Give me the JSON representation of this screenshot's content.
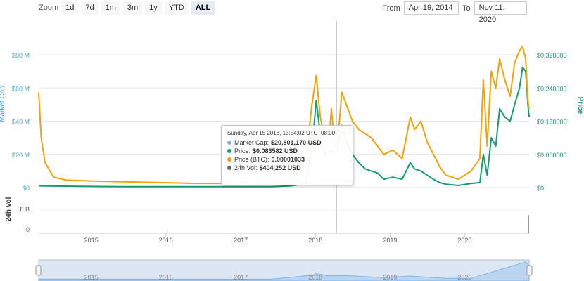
{
  "zoom": {
    "label": "Zoom",
    "buttons": [
      "1d",
      "7d",
      "1m",
      "3m",
      "1y",
      "YTD",
      "ALL"
    ],
    "active": "ALL"
  },
  "range": {
    "from_label": "From",
    "from_value": "Apr 19, 2014",
    "to_label": "To",
    "to_value": "Nov 11, 2020"
  },
  "tooltip": {
    "header": "Sunday, Apr 15 2018, 13:54:02 UTC+08:00",
    "rows": [
      {
        "label": "Market Cap:",
        "value": "$20,801,170 USD",
        "color": "#7cb5ec"
      },
      {
        "label": "Price:",
        "value": "$0.083582 USD",
        "color": "#159c6e"
      },
      {
        "label": "Price (BTC):",
        "value": "0.00001033",
        "color": "#f5a10a"
      },
      {
        "label": "24h Vol:",
        "value": "$404,252 USD",
        "color": "#666666"
      }
    ]
  },
  "chart_data": {
    "type": "line",
    "xlabels": [
      "2015",
      "2016",
      "2017",
      "2018",
      "2019",
      "2020"
    ],
    "left_axis": {
      "title": "Market Cap",
      "ticks": [
        "$0",
        "$20 M",
        "$40 M",
        "$60 M",
        "$80 M"
      ],
      "range": [
        0,
        80000000
      ]
    },
    "right_axis": {
      "title": "Price",
      "ticks": [
        "$0",
        "$0.080000",
        "$0.160000",
        "$0.240000",
        "$0.320000"
      ],
      "range": [
        0,
        0.32
      ]
    },
    "volume_axis": {
      "title": "24h Vol",
      "ticks": [
        "0",
        "8 B"
      ]
    },
    "navigator_labels": [
      "2015",
      "2016",
      "2017",
      "2018",
      "2019",
      "2020"
    ],
    "x_range": [
      "2014-04-19",
      "2020-11-11"
    ],
    "series": [
      {
        "name": "Price (BTC)",
        "color": "#f5a10a",
        "points": [
          [
            "2014-04-19",
            0.23
          ],
          [
            "2014-05-01",
            0.12
          ],
          [
            "2014-05-20",
            0.06
          ],
          [
            "2014-07-01",
            0.025
          ],
          [
            "2014-09-01",
            0.018
          ],
          [
            "2015-01-01",
            0.016
          ],
          [
            "2015-06-01",
            0.014
          ],
          [
            "2015-12-01",
            0.012
          ],
          [
            "2016-06-01",
            0.01
          ],
          [
            "2016-12-01",
            0.01
          ],
          [
            "2017-06-01",
            0.009
          ],
          [
            "2017-08-01",
            0.012
          ],
          [
            "2017-10-01",
            0.03
          ],
          [
            "2017-11-15",
            0.07
          ],
          [
            "2017-12-15",
            0.2
          ],
          [
            "2018-01-05",
            0.27
          ],
          [
            "2018-01-25",
            0.17
          ],
          [
            "2018-02-15",
            0.12
          ],
          [
            "2018-03-10",
            0.12
          ],
          [
            "2018-03-20",
            0.19
          ],
          [
            "2018-04-05",
            0.1
          ],
          [
            "2018-04-20",
            0.11
          ],
          [
            "2018-05-10",
            0.23
          ],
          [
            "2018-06-01",
            0.2
          ],
          [
            "2018-07-01",
            0.16
          ],
          [
            "2018-08-01",
            0.14
          ],
          [
            "2018-09-01",
            0.13
          ],
          [
            "2018-10-01",
            0.12
          ],
          [
            "2018-11-01",
            0.1
          ],
          [
            "2018-12-01",
            0.08
          ],
          [
            "2019-01-15",
            0.09
          ],
          [
            "2019-03-01",
            0.07
          ],
          [
            "2019-04-10",
            0.17
          ],
          [
            "2019-05-01",
            0.14
          ],
          [
            "2019-06-01",
            0.16
          ],
          [
            "2019-07-01",
            0.11
          ],
          [
            "2019-08-01",
            0.08
          ],
          [
            "2019-09-01",
            0.05
          ],
          [
            "2019-10-01",
            0.03
          ],
          [
            "2019-12-01",
            0.02
          ],
          [
            "2020-02-01",
            0.04
          ],
          [
            "2020-03-15",
            0.07
          ],
          [
            "2020-04-01",
            0.26
          ],
          [
            "2020-04-20",
            0.1
          ],
          [
            "2020-05-10",
            0.28
          ],
          [
            "2020-06-01",
            0.24
          ],
          [
            "2020-06-20",
            0.31
          ],
          [
            "2020-07-15",
            0.26
          ],
          [
            "2020-08-10",
            0.22
          ],
          [
            "2020-09-01",
            0.3
          ],
          [
            "2020-09-25",
            0.33
          ],
          [
            "2020-10-10",
            0.34
          ],
          [
            "2020-10-25",
            0.31
          ],
          [
            "2020-11-05",
            0.21
          ],
          [
            "2020-11-11",
            0.19
          ]
        ]
      },
      {
        "name": "Price",
        "color": "#159c6e",
        "points": [
          [
            "2014-04-19",
            0.004
          ],
          [
            "2015-06-01",
            0.002
          ],
          [
            "2016-06-01",
            0.002
          ],
          [
            "2017-06-01",
            0.002
          ],
          [
            "2017-09-01",
            0.004
          ],
          [
            "2017-11-15",
            0.01
          ],
          [
            "2017-12-20",
            0.12
          ],
          [
            "2018-01-05",
            0.21
          ],
          [
            "2018-01-25",
            0.13
          ],
          [
            "2018-02-15",
            0.08
          ],
          [
            "2018-03-10",
            0.09
          ],
          [
            "2018-04-15",
            0.083582
          ],
          [
            "2018-05-10",
            0.15
          ],
          [
            "2018-06-01",
            0.11
          ],
          [
            "2018-07-01",
            0.08
          ],
          [
            "2018-08-01",
            0.06
          ],
          [
            "2018-09-01",
            0.045
          ],
          [
            "2018-10-01",
            0.04
          ],
          [
            "2018-11-01",
            0.035
          ],
          [
            "2018-12-01",
            0.02
          ],
          [
            "2019-01-15",
            0.025
          ],
          [
            "2019-03-01",
            0.02
          ],
          [
            "2019-04-10",
            0.06
          ],
          [
            "2019-05-01",
            0.045
          ],
          [
            "2019-06-01",
            0.04
          ],
          [
            "2019-07-01",
            0.03
          ],
          [
            "2019-08-01",
            0.02
          ],
          [
            "2019-09-01",
            0.012
          ],
          [
            "2019-10-01",
            0.008
          ],
          [
            "2019-12-01",
            0.005
          ],
          [
            "2020-02-01",
            0.01
          ],
          [
            "2020-03-15",
            0.012
          ],
          [
            "2020-04-01",
            0.08
          ],
          [
            "2020-04-20",
            0.03
          ],
          [
            "2020-05-10",
            0.12
          ],
          [
            "2020-06-01",
            0.1
          ],
          [
            "2020-06-20",
            0.19
          ],
          [
            "2020-07-15",
            0.17
          ],
          [
            "2020-08-10",
            0.16
          ],
          [
            "2020-09-01",
            0.2
          ],
          [
            "2020-09-25",
            0.24
          ],
          [
            "2020-10-10",
            0.29
          ],
          [
            "2020-10-25",
            0.28
          ],
          [
            "2020-11-05",
            0.2
          ],
          [
            "2020-11-11",
            0.17
          ]
        ]
      }
    ],
    "navigator_series": [
      [
        "2014-04-19",
        0.03
      ],
      [
        "2015-06-01",
        0.02
      ],
      [
        "2017-06-01",
        0.02
      ],
      [
        "2017-12-20",
        0.22
      ],
      [
        "2018-01-05",
        0.3
      ],
      [
        "2018-03-01",
        0.2
      ],
      [
        "2018-06-01",
        0.2
      ],
      [
        "2018-12-01",
        0.1
      ],
      [
        "2019-04-10",
        0.18
      ],
      [
        "2019-10-01",
        0.06
      ],
      [
        "2020-02-01",
        0.06
      ],
      [
        "2020-06-20",
        0.5
      ],
      [
        "2020-09-25",
        0.8
      ],
      [
        "2020-10-25",
        0.9
      ],
      [
        "2020-11-11",
        0.7
      ]
    ],
    "volume": [
      [
        "2020-11-11",
        0.55
      ]
    ],
    "crosshair_date": "2018-04-15"
  }
}
